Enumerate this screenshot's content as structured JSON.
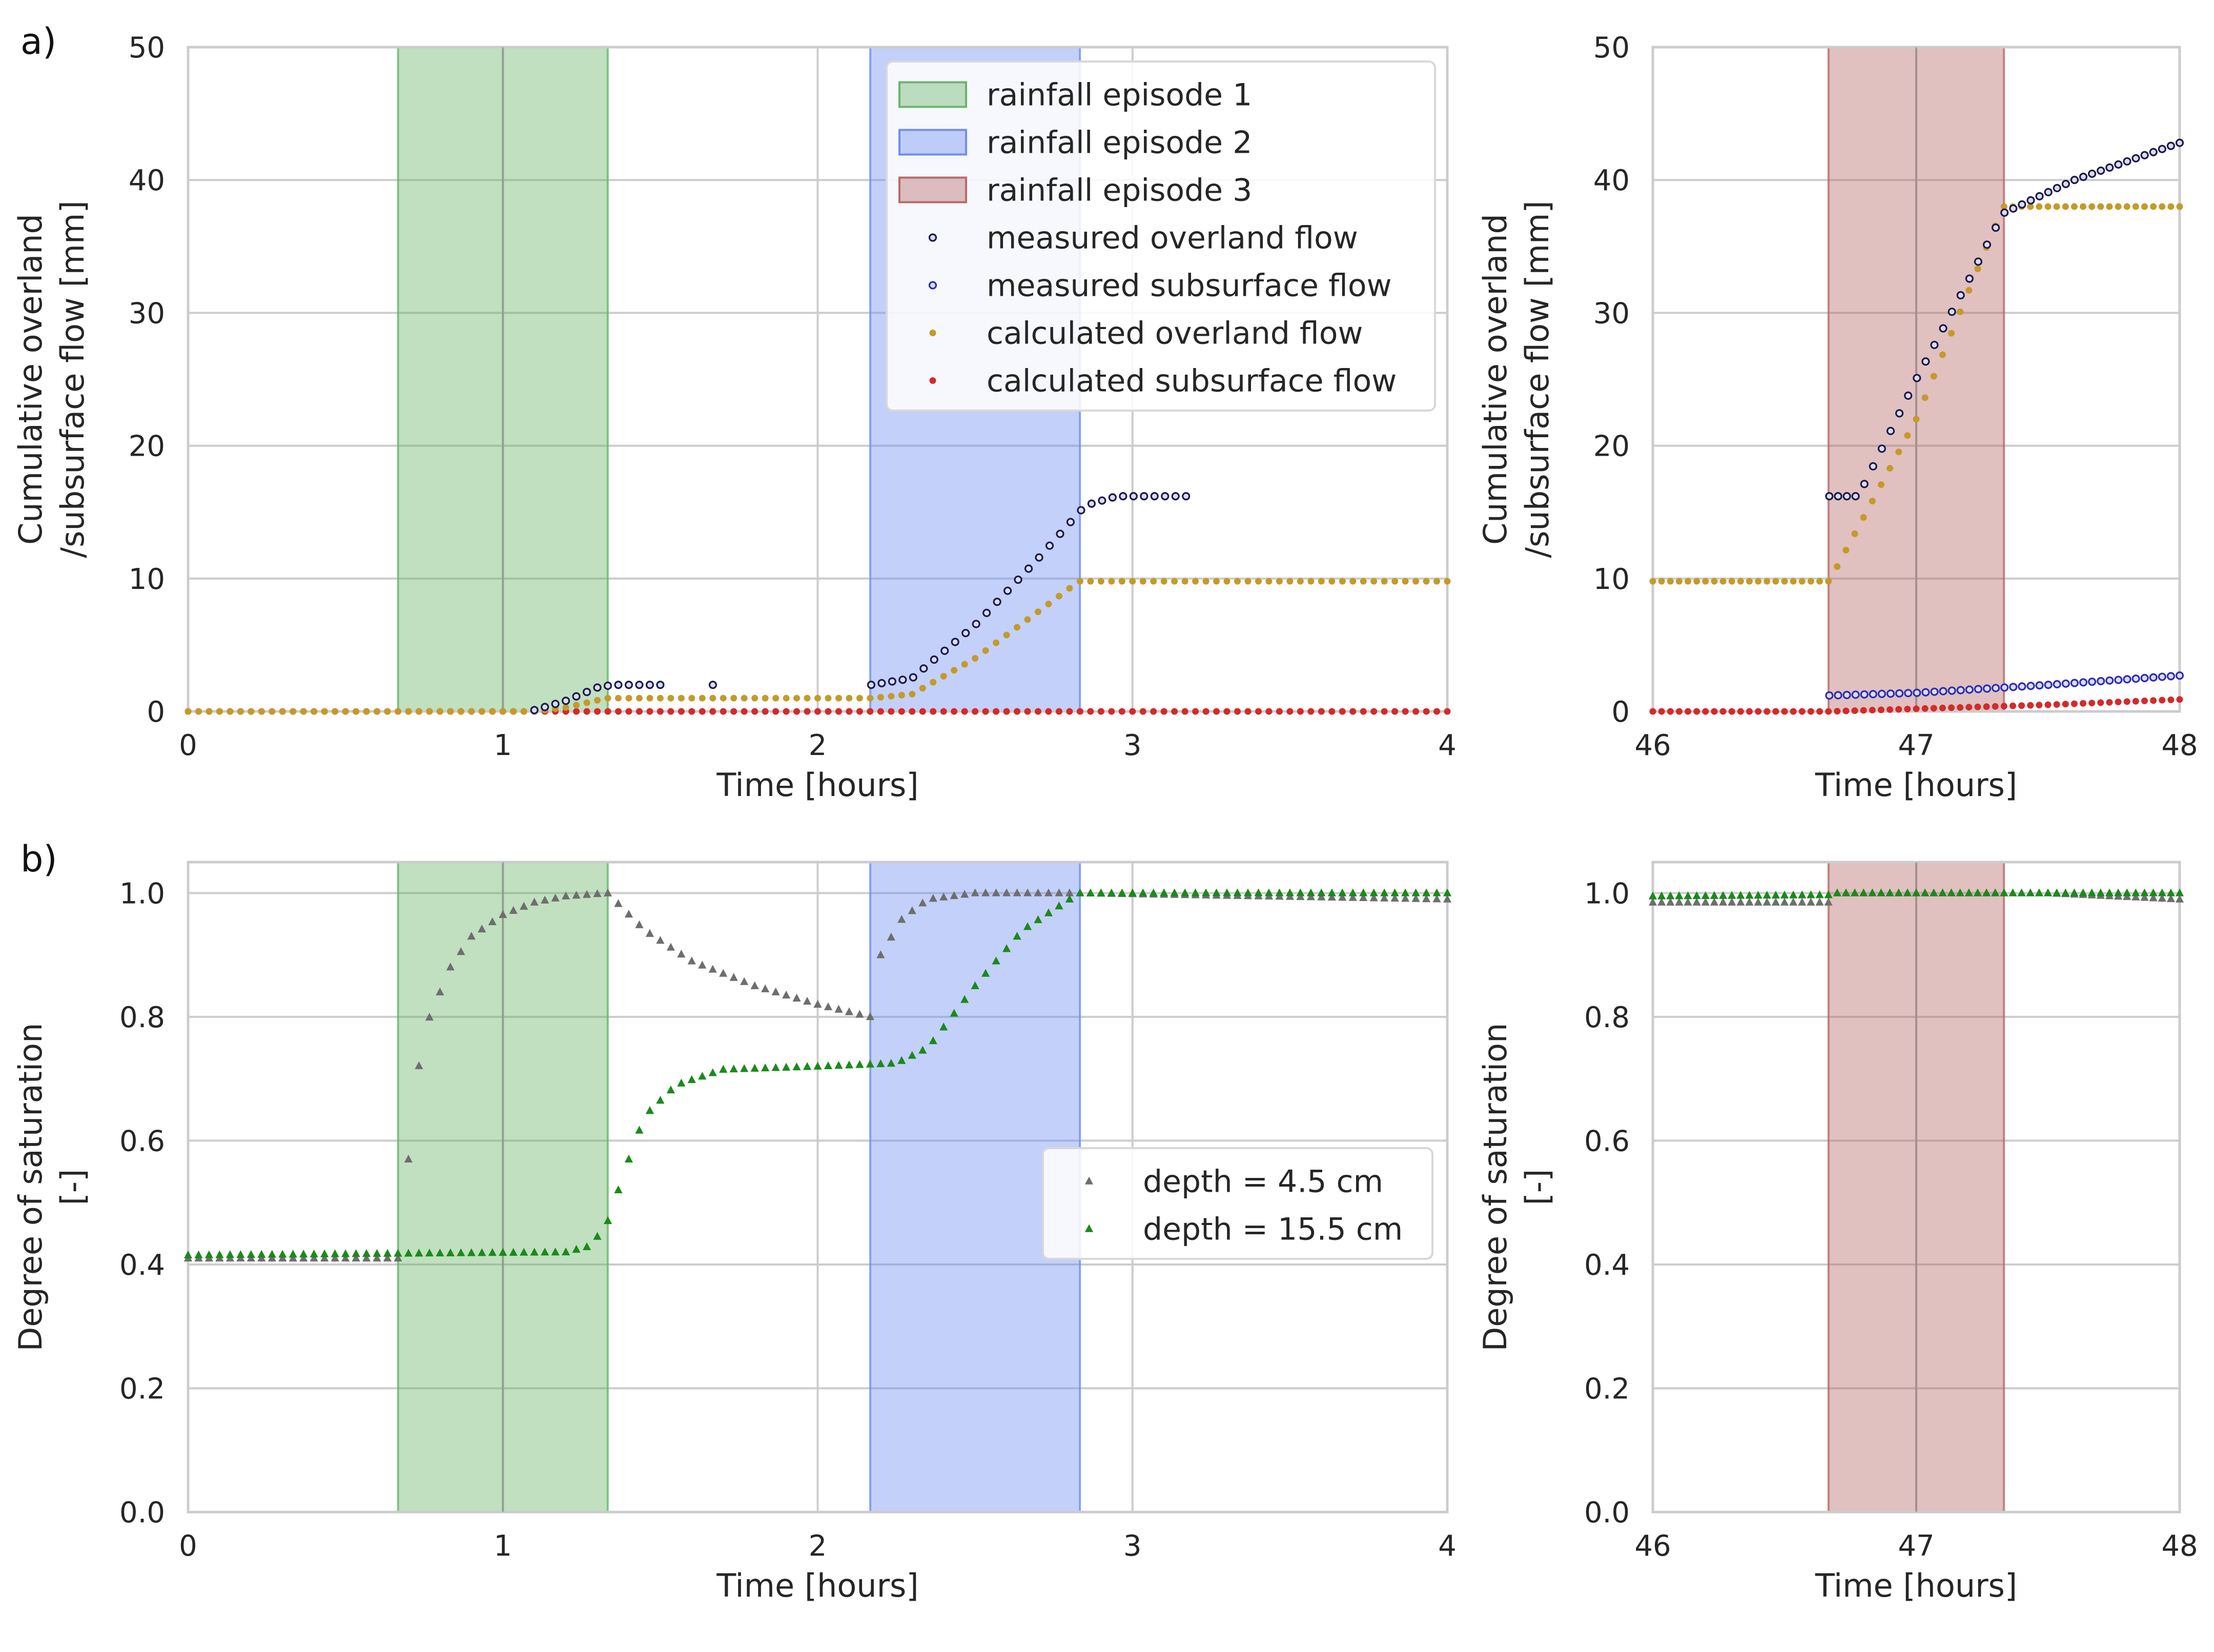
{
  "colors": {
    "episode1": "#6ab46a",
    "episode2": "#6f8ef0",
    "episode3": "#b86a6a",
    "measured_overland": "#1a1a4a",
    "measured_subsurface": "#2d2db4",
    "calculated_overland": "#c49a2a",
    "calculated_subsurface": "#d42a2a",
    "depth_4_5": "#6e6e6e",
    "depth_15_5": "#1a8a1a"
  },
  "chart_data": [
    {
      "id": "a_left",
      "panel_label": "a)",
      "type": "scatter",
      "xlabel": "Time [hours]",
      "ylabel_lines": [
        "Cumulative overland",
        "/subsurface flow [mm]"
      ],
      "xlim": [
        0,
        4
      ],
      "ylim": [
        0,
        50
      ],
      "xticks": [
        0,
        1,
        2,
        3,
        4
      ],
      "xtick_labels": [
        "0",
        "1",
        "2",
        "3",
        "4"
      ],
      "yticks": [
        0,
        10,
        20,
        30,
        40,
        50
      ],
      "ytick_labels": [
        "0",
        "10",
        "20",
        "30",
        "40",
        "50"
      ],
      "spans": [
        {
          "name": "rainfall episode 1",
          "x0": 0.667,
          "x1": 1.333,
          "color_key": "episode1"
        },
        {
          "name": "rainfall episode 2",
          "x0": 2.167,
          "x1": 2.833,
          "color_key": "episode2"
        }
      ],
      "series": [
        {
          "name": "calculated subsurface flow",
          "marker": "dot",
          "color_key": "calculated_subsurface",
          "x": [
            0,
            4
          ],
          "step": 0.0333,
          "func": "zero"
        },
        {
          "name": "calculated overland flow",
          "marker": "dot",
          "color_key": "calculated_overland",
          "points": [
            [
              0,
              0
            ],
            [
              1.1,
              0
            ],
            [
              1.2,
              0.3
            ],
            [
              1.33,
              1.0
            ],
            [
              2.17,
              1.0
            ],
            [
              2.3,
              1.3
            ],
            [
              2.5,
              4.0
            ],
            [
              2.7,
              7.5
            ],
            [
              2.83,
              9.8
            ],
            [
              4,
              9.8
            ]
          ],
          "step": 0.0333
        },
        {
          "name": "measured overland flow",
          "marker": "ring",
          "color_key": "measured_overland",
          "segments": [
            {
              "points": [
                [
                  1.1,
                  0.1
                ],
                [
                  1.2,
                  0.8
                ],
                [
                  1.3,
                  1.8
                ],
                [
                  1.35,
                  2.0
                ],
                [
                  1.5,
                  2.0
                ]
              ],
              "step": 0.0333
            },
            {
              "points": [
                [
                  1.667,
                  2.0
                ],
                [
                  1.667,
                  2.0
                ]
              ],
              "step": 1
            },
            {
              "points": [
                [
                  2.17,
                  2.0
                ],
                [
                  2.3,
                  2.5
                ],
                [
                  2.5,
                  6.5
                ],
                [
                  2.7,
                  11.5
                ],
                [
                  2.85,
                  15.5
                ],
                [
                  2.95,
                  16.2
                ],
                [
                  3.17,
                  16.2
                ]
              ],
              "step": 0.0333
            }
          ]
        }
      ],
      "legend": {
        "placement": "upper-right",
        "entries": [
          {
            "label": "rainfall episode 1",
            "kind": "patch",
            "color_key": "episode1"
          },
          {
            "label": "rainfall episode 2",
            "kind": "patch",
            "color_key": "episode2"
          },
          {
            "label": "rainfall episode 3",
            "kind": "patch",
            "color_key": "episode3"
          },
          {
            "label": "measured overland flow",
            "kind": "ring",
            "color_key": "measured_overland"
          },
          {
            "label": "measured subsurface flow",
            "kind": "ring",
            "color_key": "measured_subsurface"
          },
          {
            "label": "calculated overland flow",
            "kind": "dot",
            "color_key": "calculated_overland"
          },
          {
            "label": "calculated subsurface flow",
            "kind": "dot",
            "color_key": "calculated_subsurface"
          }
        ]
      }
    },
    {
      "id": "a_right",
      "type": "scatter",
      "xlabel": "Time [hours]",
      "ylabel_lines": [
        "Cumulative overland",
        "/subsurface flow [mm]"
      ],
      "xlim": [
        46,
        48
      ],
      "ylim": [
        0,
        50
      ],
      "xticks": [
        46,
        47,
        48
      ],
      "xtick_labels": [
        "46",
        "47",
        "48"
      ],
      "yticks": [
        0,
        10,
        20,
        30,
        40,
        50
      ],
      "ytick_labels": [
        "0",
        "10",
        "20",
        "30",
        "40",
        "50"
      ],
      "spans": [
        {
          "name": "rainfall episode 3",
          "x0": 46.667,
          "x1": 47.333,
          "color_key": "episode3"
        }
      ],
      "series": [
        {
          "name": "calculated subsurface flow",
          "marker": "dot",
          "color_key": "calculated_subsurface",
          "points": [
            [
              46,
              0
            ],
            [
              46.67,
              0
            ],
            [
              47,
              0.2
            ],
            [
              47.5,
              0.5
            ],
            [
              48,
              0.9
            ]
          ],
          "step": 0.0333
        },
        {
          "name": "measured subsurface flow",
          "marker": "ring",
          "color_key": "measured_subsurface",
          "points": [
            [
              46.67,
              1.2
            ],
            [
              47,
              1.4
            ],
            [
              47.5,
              2.0
            ],
            [
              48,
              2.7
            ]
          ],
          "step": 0.0333
        },
        {
          "name": "calculated overland flow",
          "marker": "dot",
          "color_key": "calculated_overland",
          "points": [
            [
              46,
              9.8
            ],
            [
              46.67,
              9.8
            ],
            [
              47,
              22.0
            ],
            [
              47.33,
              38.0
            ],
            [
              48,
              38.0
            ]
          ],
          "step": 0.0333
        },
        {
          "name": "measured overland flow",
          "marker": "ring",
          "color_key": "measured_overland",
          "points": [
            [
              46.67,
              16.2
            ],
            [
              46.78,
              16.2
            ],
            [
              47,
              25.0
            ],
            [
              47.2,
              32.5
            ],
            [
              47.33,
              37.5
            ],
            [
              47.6,
              40.0
            ],
            [
              48,
              42.8
            ]
          ],
          "step": 0.0333
        }
      ]
    },
    {
      "id": "b_left",
      "panel_label": "b)",
      "type": "scatter",
      "xlabel": "Time [hours]",
      "ylabel_lines": [
        "Degree of saturation",
        "[-]"
      ],
      "xlim": [
        0,
        4
      ],
      "ylim": [
        0,
        1.05
      ],
      "xticks": [
        0,
        1,
        2,
        3,
        4
      ],
      "xtick_labels": [
        "0",
        "1",
        "2",
        "3",
        "4"
      ],
      "yticks": [
        0,
        0.2,
        0.4,
        0.6,
        0.8,
        1.0
      ],
      "ytick_labels": [
        "0.0",
        "0.2",
        "0.4",
        "0.6",
        "0.8",
        "1.0"
      ],
      "spans": [
        {
          "name": "rainfall episode 1",
          "x0": 0.667,
          "x1": 1.333,
          "color_key": "episode1"
        },
        {
          "name": "rainfall episode 2",
          "x0": 2.167,
          "x1": 2.833,
          "color_key": "episode2"
        }
      ],
      "series": [
        {
          "name": "depth = 4.5 cm",
          "marker": "triangle",
          "color_key": "depth_4_5",
          "points": [
            [
              0,
              0.41
            ],
            [
              0.667,
              0.41
            ],
            [
              0.7,
              0.57
            ],
            [
              0.733,
              0.72
            ],
            [
              0.767,
              0.8
            ],
            [
              0.833,
              0.88
            ],
            [
              0.9,
              0.93
            ],
            [
              1.0,
              0.965
            ],
            [
              1.1,
              0.985
            ],
            [
              1.2,
              0.995
            ],
            [
              1.333,
              1.0
            ],
            [
              1.45,
              0.94
            ],
            [
              1.6,
              0.89
            ],
            [
              1.8,
              0.85
            ],
            [
              2.0,
              0.82
            ],
            [
              2.167,
              0.8
            ],
            [
              2.2,
              0.9
            ],
            [
              2.27,
              0.96
            ],
            [
              2.35,
              0.99
            ],
            [
              2.5,
              1.0
            ],
            [
              2.83,
              1.0
            ],
            [
              4,
              0.99
            ]
          ],
          "step": 0.0333
        },
        {
          "name": "depth = 15.5 cm",
          "marker": "triangle",
          "color_key": "depth_15_5",
          "points": [
            [
              0,
              0.415
            ],
            [
              1.2,
              0.42
            ],
            [
              1.28,
              0.43
            ],
            [
              1.333,
              0.47
            ],
            [
              1.4,
              0.57
            ],
            [
              1.45,
              0.64
            ],
            [
              1.55,
              0.69
            ],
            [
              1.7,
              0.715
            ],
            [
              2.0,
              0.72
            ],
            [
              2.25,
              0.725
            ],
            [
              2.35,
              0.75
            ],
            [
              2.5,
              0.85
            ],
            [
              2.65,
              0.94
            ],
            [
              2.83,
              1.0
            ],
            [
              4,
              1.0
            ]
          ],
          "step": 0.0333
        }
      ],
      "legend": {
        "placement": "center-right",
        "entries": [
          {
            "label": "depth = 4.5 cm",
            "kind": "triangle",
            "color_key": "depth_4_5"
          },
          {
            "label": "depth = 15.5 cm",
            "kind": "triangle",
            "color_key": "depth_15_5"
          }
        ]
      }
    },
    {
      "id": "b_right",
      "type": "scatter",
      "xlabel": "Time [hours]",
      "ylabel_lines": [
        "Degree of saturation",
        "[-]"
      ],
      "xlim": [
        46,
        48
      ],
      "ylim": [
        0,
        1.05
      ],
      "xticks": [
        46,
        47,
        48
      ],
      "xtick_labels": [
        "46",
        "47",
        "48"
      ],
      "yticks": [
        0,
        0.2,
        0.4,
        0.6,
        0.8,
        1.0
      ],
      "ytick_labels": [
        "0.0",
        "0.2",
        "0.4",
        "0.6",
        "0.8",
        "1.0"
      ],
      "spans": [
        {
          "name": "rainfall episode 3",
          "x0": 46.667,
          "x1": 47.333,
          "color_key": "episode3"
        }
      ],
      "series": [
        {
          "name": "depth = 4.5 cm",
          "marker": "triangle",
          "color_key": "depth_4_5",
          "points": [
            [
              46,
              0.985
            ],
            [
              46.67,
              0.985
            ],
            [
              46.7,
              1.0
            ],
            [
              47.5,
              1.0
            ],
            [
              48,
              0.99
            ]
          ],
          "step": 0.0333
        },
        {
          "name": "depth = 15.5 cm",
          "marker": "triangle",
          "color_key": "depth_15_5",
          "points": [
            [
              46,
              0.995
            ],
            [
              46.67,
              0.997
            ],
            [
              46.7,
              1.0
            ],
            [
              48,
              1.0
            ]
          ],
          "step": 0.0333
        }
      ]
    }
  ]
}
